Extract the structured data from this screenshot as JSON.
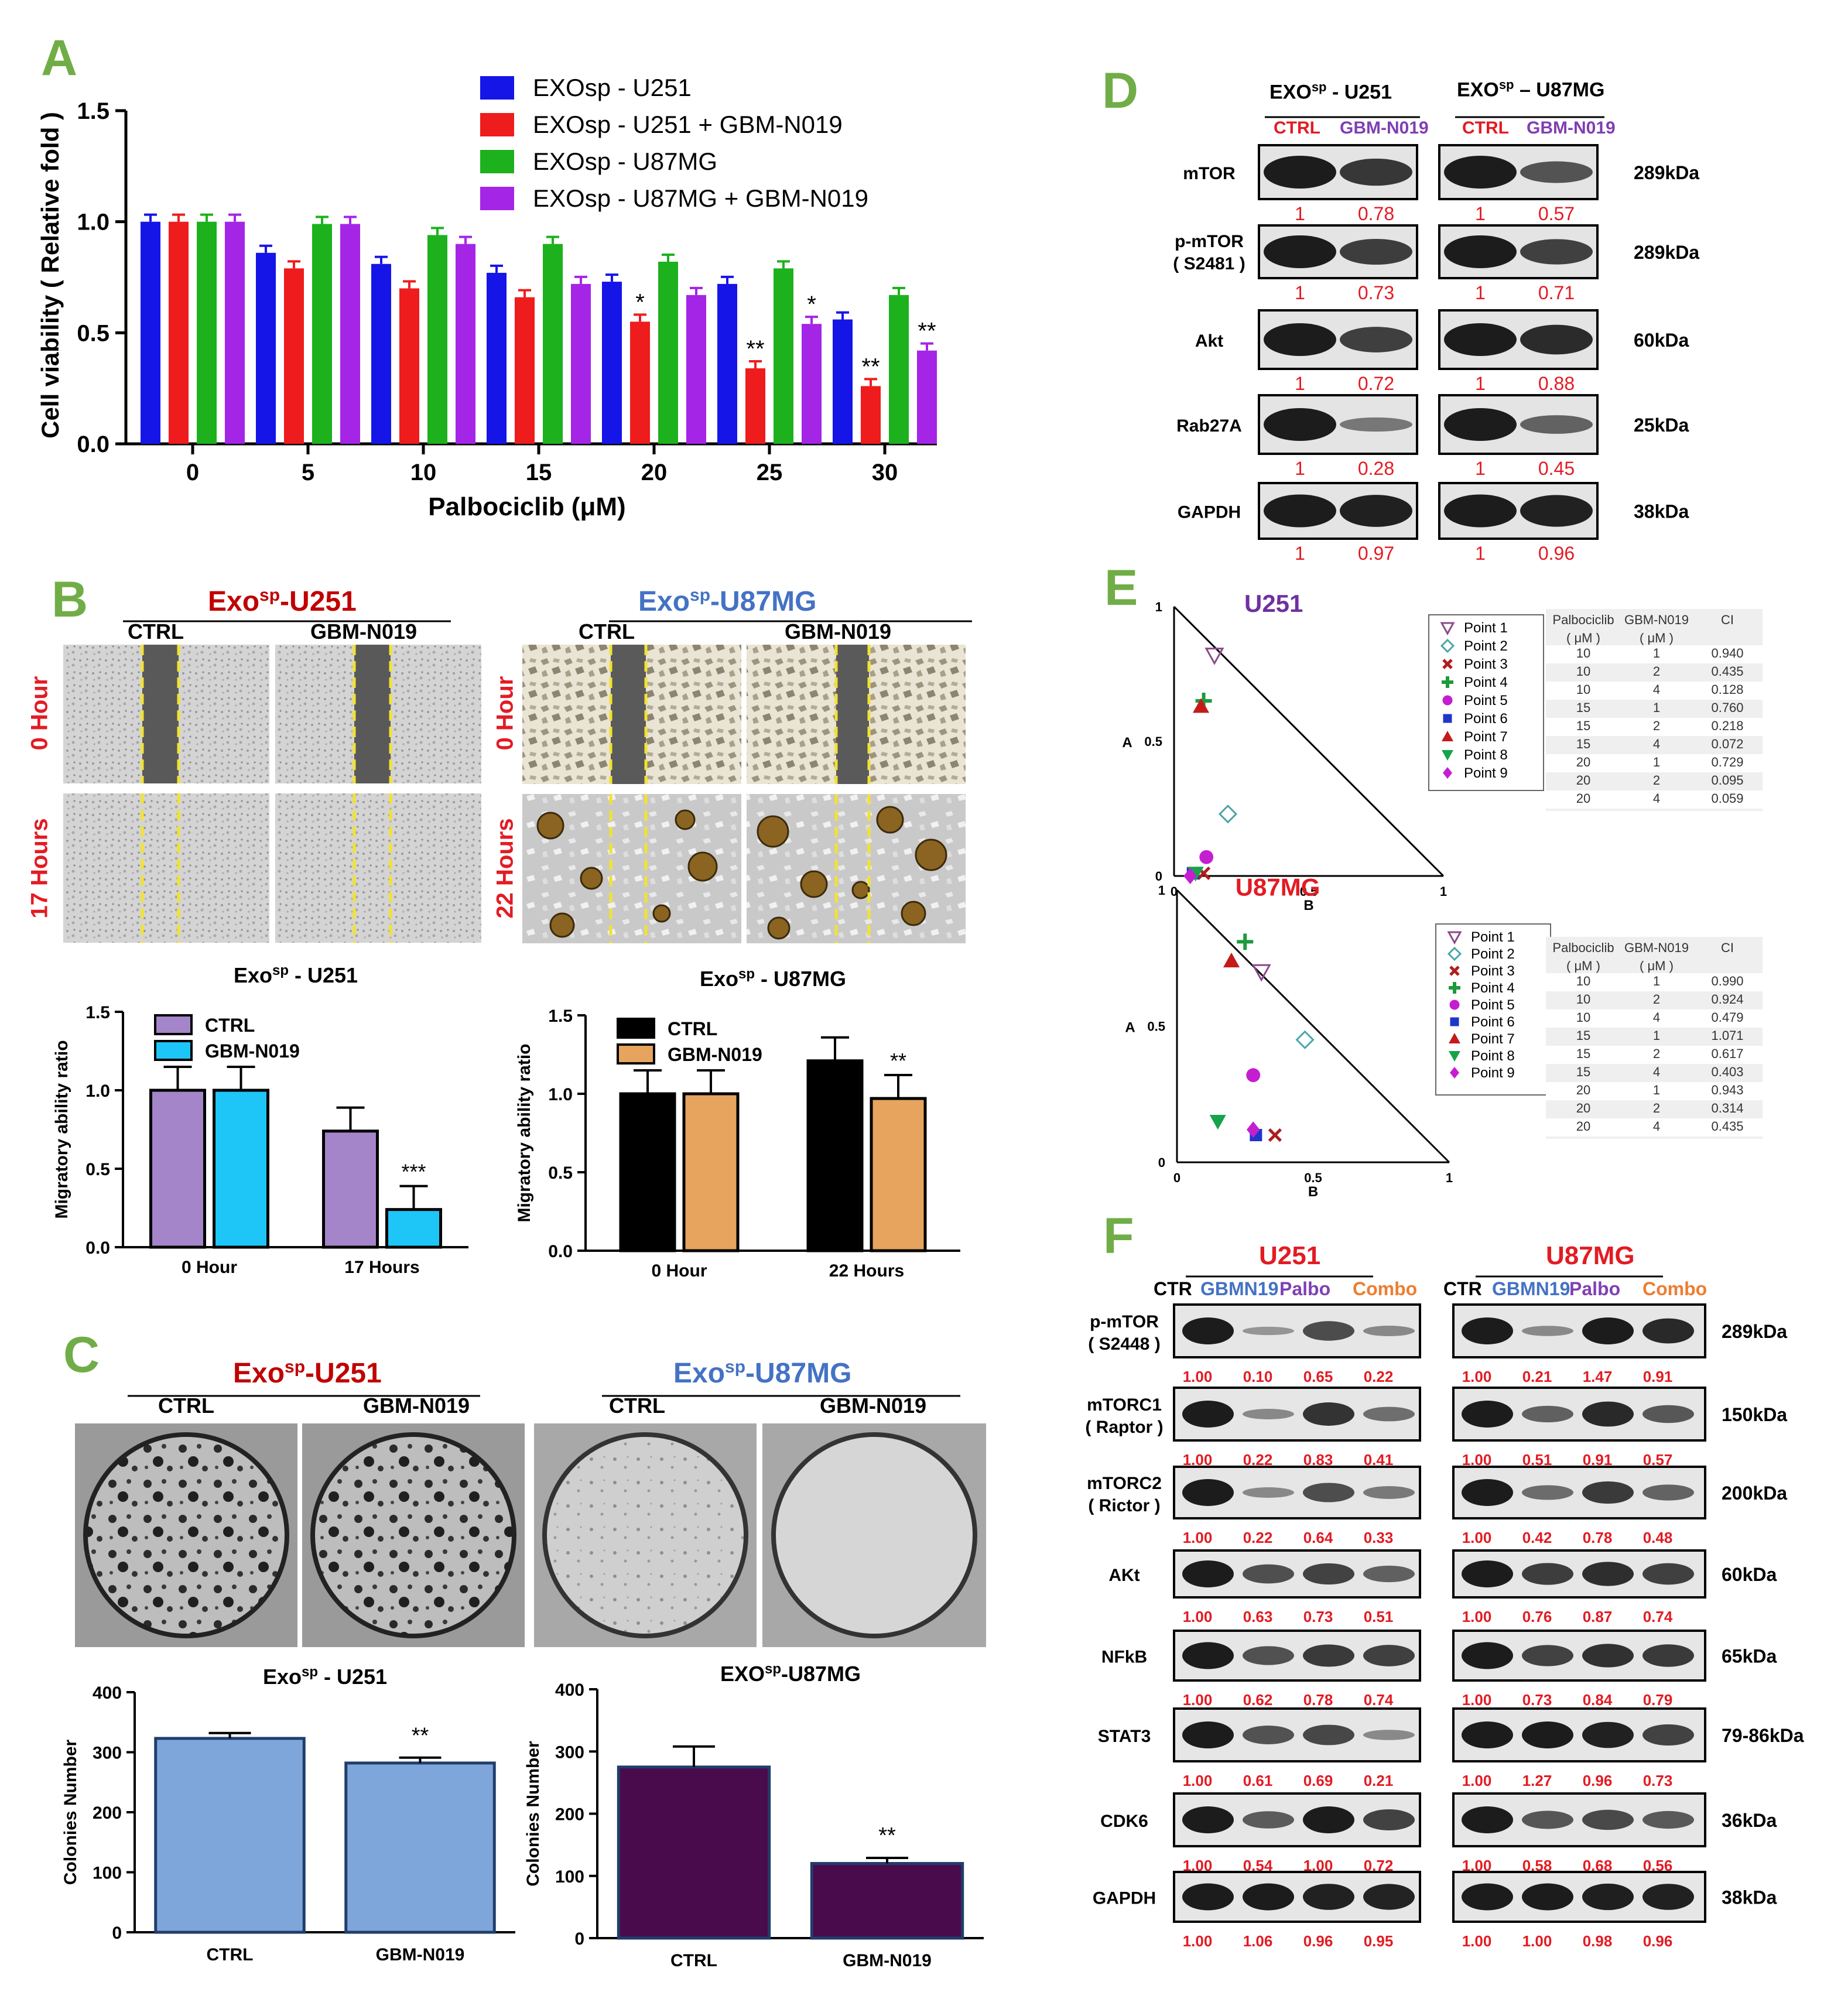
{
  "panels": {
    "A": "A",
    "B": "B",
    "C": "C",
    "D": "D",
    "E": "E",
    "F": "F"
  },
  "colors": {
    "u251": "#1515e8",
    "u251_combo": "#ee1c1c",
    "u87mg": "#1db11d",
    "u87mg_combo": "#a425e6",
    "ctrl_purple": "#a585c9",
    "gbm_cyan": "#1ec6f7",
    "ctrl_black": "#000000",
    "gbm_tan": "#e6a45e",
    "colony_blue": "#7fa6db",
    "colony_plum": "#4a0b4c",
    "red_text": "#e31b23",
    "purple_text": "#7f3fb3",
    "blue_text": "#4472c4",
    "orange_text": "#ed7d31",
    "green_letter": "#70ad47"
  },
  "chart_data": [
    {
      "id": "A",
      "type": "bar",
      "ylabel": "Cell viability ( Relative fold )",
      "xlabel": "Palbociclib (μM)",
      "ylim": [
        0,
        1.5
      ],
      "yticks": [
        "0.0",
        "0.5",
        "1.0",
        "1.5"
      ],
      "categories": [
        "0",
        "5",
        "10",
        "15",
        "20",
        "25",
        "30"
      ],
      "series": [
        {
          "name": "EXOsp - U251",
          "values": [
            1.0,
            0.86,
            0.81,
            0.77,
            0.73,
            0.72,
            0.56
          ]
        },
        {
          "name": "EXOsp - U251 + GBM-N019",
          "values": [
            1.0,
            0.79,
            0.7,
            0.66,
            0.55,
            0.34,
            0.26
          ]
        },
        {
          "name": "EXOsp - U87MG",
          "values": [
            1.0,
            0.99,
            0.94,
            0.9,
            0.82,
            0.79,
            0.67
          ]
        },
        {
          "name": "EXOsp - U87MG + GBM-N019",
          "values": [
            1.0,
            0.99,
            0.9,
            0.72,
            0.67,
            0.54,
            0.42
          ]
        }
      ],
      "annotations": [
        {
          "category": "20",
          "series": 1,
          "text": "*"
        },
        {
          "category": "25",
          "series": 1,
          "text": "**"
        },
        {
          "category": "25",
          "series": 3,
          "text": "*"
        },
        {
          "category": "30",
          "series": 1,
          "text": "**"
        },
        {
          "category": "30",
          "series": 3,
          "text": "**"
        }
      ]
    },
    {
      "id": "B-U251",
      "type": "bar",
      "title": "Exo",
      "title_sup": "sp",
      "title_tail": " - U251",
      "ylabel": "Migratory ability ratio",
      "ylim": [
        0,
        1.5
      ],
      "yticks": [
        "0.0",
        "0.5",
        "1.0",
        "1.5"
      ],
      "categories": [
        "0 Hour",
        "17 Hours"
      ],
      "series": [
        {
          "name": "CTRL",
          "values": [
            1.0,
            0.74
          ]
        },
        {
          "name": "GBM-N019",
          "values": [
            1.0,
            0.24
          ]
        }
      ],
      "annotation": "***"
    },
    {
      "id": "B-U87MG",
      "type": "bar",
      "title": "Exo",
      "title_sup": "sp",
      "title_tail": " - U87MG",
      "ylabel": "Migratory ability ratio",
      "ylim": [
        0,
        1.5
      ],
      "yticks": [
        "0.0",
        "0.5",
        "1.0",
        "1.5"
      ],
      "categories": [
        "0 Hour",
        "22 Hours"
      ],
      "series": [
        {
          "name": "CTRL",
          "values": [
            1.0,
            1.21
          ]
        },
        {
          "name": "GBM-N019",
          "values": [
            1.0,
            0.97
          ]
        }
      ],
      "annotation": "**"
    },
    {
      "id": "C-U251",
      "type": "bar",
      "title": "Exo",
      "title_sup": "sp",
      "title_tail": " - U251",
      "ylabel": "Colonies Number",
      "ylim": [
        0,
        400
      ],
      "yticks": [
        "0",
        "100",
        "200",
        "300",
        "400"
      ],
      "categories": [
        "CTRL",
        "GBM-N019"
      ],
      "values": [
        323,
        282
      ],
      "annotation": "**"
    },
    {
      "id": "C-U87MG",
      "type": "bar",
      "title": "EXO",
      "title_sup": "sp",
      "title_tail": "-U87MG",
      "ylabel": "Colonies Number",
      "ylim": [
        0,
        400
      ],
      "yticks": [
        "0",
        "100",
        "200",
        "300",
        "400"
      ],
      "categories": [
        "CTRL",
        "GBM-N019"
      ],
      "values": [
        275,
        120
      ],
      "annotation": "**"
    },
    {
      "id": "E-U251",
      "type": "scatter",
      "title": "U251",
      "xlabel": "B",
      "ylabel": "A",
      "xticks": [
        "0",
        "0.5",
        "1"
      ],
      "yticks": [
        "0",
        "0.5",
        "1"
      ],
      "points": [
        {
          "name": "Point 1",
          "x": 0.15,
          "y": 0.82
        },
        {
          "name": "Point 2",
          "x": 0.2,
          "y": 0.23
        },
        {
          "name": "Point 3",
          "x": 0.11,
          "y": 0.01
        },
        {
          "name": "Point 4",
          "x": 0.11,
          "y": 0.65
        },
        {
          "name": "Point 5",
          "x": 0.12,
          "y": 0.07
        },
        {
          "name": "Point 6",
          "x": 0.07,
          "y": 0.01
        },
        {
          "name": "Point 7",
          "x": 0.1,
          "y": 0.63
        },
        {
          "name": "Point 8",
          "x": 0.08,
          "y": 0.01
        },
        {
          "name": "Point 9",
          "x": 0.06,
          "y": 0.0
        }
      ],
      "table": {
        "headers": [
          [
            "Palbociclib",
            "( μM )"
          ],
          [
            "GBM-N019",
            "( μM )"
          ],
          [
            "CI",
            ""
          ]
        ],
        "rows": [
          [
            "10",
            "1",
            "0.940"
          ],
          [
            "10",
            "2",
            "0.435"
          ],
          [
            "10",
            "4",
            "0.128"
          ],
          [
            "15",
            "1",
            "0.760"
          ],
          [
            "15",
            "2",
            "0.218"
          ],
          [
            "15",
            "4",
            "0.072"
          ],
          [
            "20",
            "1",
            "0.729"
          ],
          [
            "20",
            "2",
            "0.095"
          ],
          [
            "20",
            "4",
            "0.059"
          ]
        ]
      }
    },
    {
      "id": "E-U87MG",
      "type": "scatter",
      "title": "U87MG",
      "xlabel": "B",
      "ylabel": "A",
      "xticks": [
        "0",
        "0.5",
        "1"
      ],
      "yticks": [
        "0",
        "0.5",
        "1"
      ],
      "points": [
        {
          "name": "Point 1",
          "x": 0.31,
          "y": 0.7
        },
        {
          "name": "Point 2",
          "x": 0.47,
          "y": 0.45
        },
        {
          "name": "Point 3",
          "x": 0.36,
          "y": 0.1
        },
        {
          "name": "Point 4",
          "x": 0.25,
          "y": 0.81
        },
        {
          "name": "Point 5",
          "x": 0.28,
          "y": 0.32
        },
        {
          "name": "Point 6",
          "x": 0.29,
          "y": 0.1
        },
        {
          "name": "Point 7",
          "x": 0.2,
          "y": 0.74
        },
        {
          "name": "Point 8",
          "x": 0.15,
          "y": 0.15
        },
        {
          "name": "Point 9",
          "x": 0.28,
          "y": 0.12
        }
      ],
      "table": {
        "headers": [
          [
            "Palbociclib",
            "( μM )"
          ],
          [
            "GBM-N019",
            "( μM )"
          ],
          [
            "CI",
            ""
          ]
        ],
        "rows": [
          [
            "10",
            "1",
            "0.990"
          ],
          [
            "10",
            "2",
            "0.924"
          ],
          [
            "10",
            "4",
            "0.479"
          ],
          [
            "15",
            "1",
            "1.071"
          ],
          [
            "15",
            "2",
            "0.617"
          ],
          [
            "15",
            "4",
            "0.403"
          ],
          [
            "20",
            "1",
            "0.943"
          ],
          [
            "20",
            "2",
            "0.314"
          ],
          [
            "20",
            "4",
            "0.435"
          ]
        ]
      }
    }
  ],
  "panelB": {
    "u251_title": "Exo",
    "u251_sup": "sp",
    "u251_tail": "-U251",
    "u87_title": "Exo",
    "u87_sup": "sp",
    "u87_tail": "-U87MG",
    "ctrl": "CTRL",
    "gbm": "GBM-N019",
    "row0_u251": "0 Hour",
    "row1_u251": "17 Hours",
    "row0_u87": "0 Hour",
    "row1_u87": "22 Hours"
  },
  "panelC": {
    "u251_title": "Exo",
    "u251_sup": "sp",
    "u251_tail": "-U251",
    "u87_title": "Exo",
    "u87_sup": "sp",
    "u87_tail": "-U87MG",
    "ctrl": "CTRL",
    "gbm": "GBM-N019"
  },
  "panelD": {
    "u251_title": "EXO",
    "u251_sup": "sp",
    "u251_tail": " - U251",
    "u87_title": "EXO",
    "u87_sup": "sp",
    "u87_tail": " – U87MG",
    "ctrl": "CTRL",
    "gbm": "GBM-N019",
    "rows": [
      {
        "label": "mTOR",
        "label2": "",
        "kda": "289kDa",
        "u251": [
          "1",
          "0.78"
        ],
        "u87": [
          "1",
          "0.57"
        ]
      },
      {
        "label": "p-mTOR",
        "label2": "( S2481 )",
        "kda": "289kDa",
        "u251": [
          "1",
          "0.73"
        ],
        "u87": [
          "1",
          "0.71"
        ]
      },
      {
        "label": "Akt",
        "label2": "",
        "kda": "60kDa",
        "u251": [
          "1",
          "0.72"
        ],
        "u87": [
          "1",
          "0.88"
        ]
      },
      {
        "label": "Rab27A",
        "label2": "",
        "kda": "25kDa",
        "u251": [
          "1",
          "0.28"
        ],
        "u87": [
          "1",
          "0.45"
        ]
      },
      {
        "label": "GAPDH",
        "label2": "",
        "kda": "38kDa",
        "u251": [
          "1",
          "0.97"
        ],
        "u87": [
          "1",
          "0.96"
        ]
      }
    ]
  },
  "panelF": {
    "u251_title": "U251",
    "u87_title": "U87MG",
    "lanes": [
      "CTR",
      "GBMN19",
      "Palbo",
      "Combo"
    ],
    "rows": [
      {
        "label": "p-mTOR",
        "label2": "( S2448 )",
        "kda": "289kDa",
        "u251": [
          "1.00",
          "0.10",
          "0.65",
          "0.22"
        ],
        "u87": [
          "1.00",
          "0.21",
          "1.47",
          "0.91"
        ]
      },
      {
        "label": "mTORC1",
        "label2": "( Raptor )",
        "kda": "150kDa",
        "u251": [
          "1.00",
          "0.22",
          "0.83",
          "0.41"
        ],
        "u87": [
          "1.00",
          "0.51",
          "0.91",
          "0.57"
        ]
      },
      {
        "label": "mTORC2",
        "label2": "( Rictor )",
        "kda": "200kDa",
        "u251": [
          "1.00",
          "0.22",
          "0.64",
          "0.33"
        ],
        "u87": [
          "1.00",
          "0.42",
          "0.78",
          "0.48"
        ]
      },
      {
        "label": "AKt",
        "label2": "",
        "kda": "60kDa",
        "u251": [
          "1.00",
          "0.63",
          "0.73",
          "0.51"
        ],
        "u87": [
          "1.00",
          "0.76",
          "0.87",
          "0.74"
        ]
      },
      {
        "label": "NFkB",
        "label2": "",
        "kda": "65kDa",
        "u251": [
          "1.00",
          "0.62",
          "0.78",
          "0.74"
        ],
        "u87": [
          "1.00",
          "0.73",
          "0.84",
          "0.79"
        ]
      },
      {
        "label": "STAT3",
        "label2": "",
        "kda": "79-86kDa",
        "u251": [
          "1.00",
          "0.61",
          "0.69",
          "0.21"
        ],
        "u87": [
          "1.00",
          "1.27",
          "0.96",
          "0.73"
        ]
      },
      {
        "label": "CDK6",
        "label2": "",
        "kda": "36kDa",
        "u251": [
          "1.00",
          "0.54",
          "1.00",
          "0.72"
        ],
        "u87": [
          "1.00",
          "0.58",
          "0.68",
          "0.56"
        ]
      },
      {
        "label": "GAPDH",
        "label2": "",
        "kda": "38kDa",
        "u251": [
          "1.00",
          "1.06",
          "0.96",
          "0.95"
        ],
        "u87": [
          "1.00",
          "1.00",
          "0.98",
          "0.96"
        ]
      }
    ]
  }
}
